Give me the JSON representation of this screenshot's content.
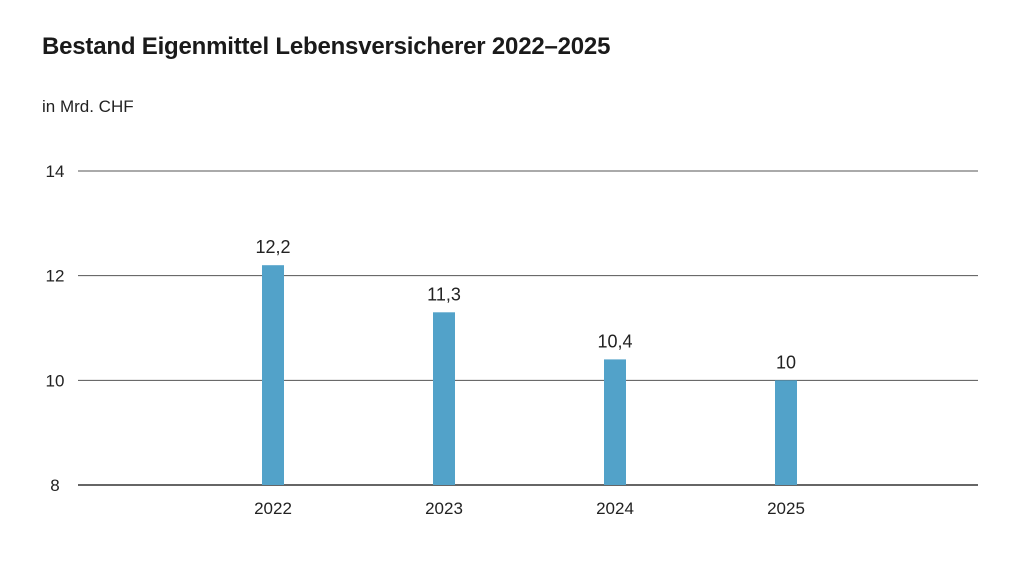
{
  "title": "Bestand Eigenmittel Lebensversicherer 2022–2025",
  "unit_label": "in Mrd. CHF",
  "colors": {
    "bar": "#52a2c9",
    "grid": "#555555",
    "baseline": "#333333"
  },
  "chart_data": {
    "type": "bar",
    "title": "Bestand Eigenmittel Lebensversicherer 2022–2025",
    "ylabel": "in Mrd. CHF",
    "xlabel": "",
    "categories": [
      "2022",
      "2023",
      "2024",
      "2025"
    ],
    "values": [
      12.2,
      11.3,
      10.4,
      10
    ],
    "value_labels": [
      "12,2",
      "11,3",
      "10,4",
      "10"
    ],
    "ylim": [
      8,
      14
    ],
    "yticks": [
      8,
      10,
      12,
      14
    ],
    "ytick_labels": [
      "8",
      "10",
      "12",
      "14"
    ],
    "grid": true
  }
}
